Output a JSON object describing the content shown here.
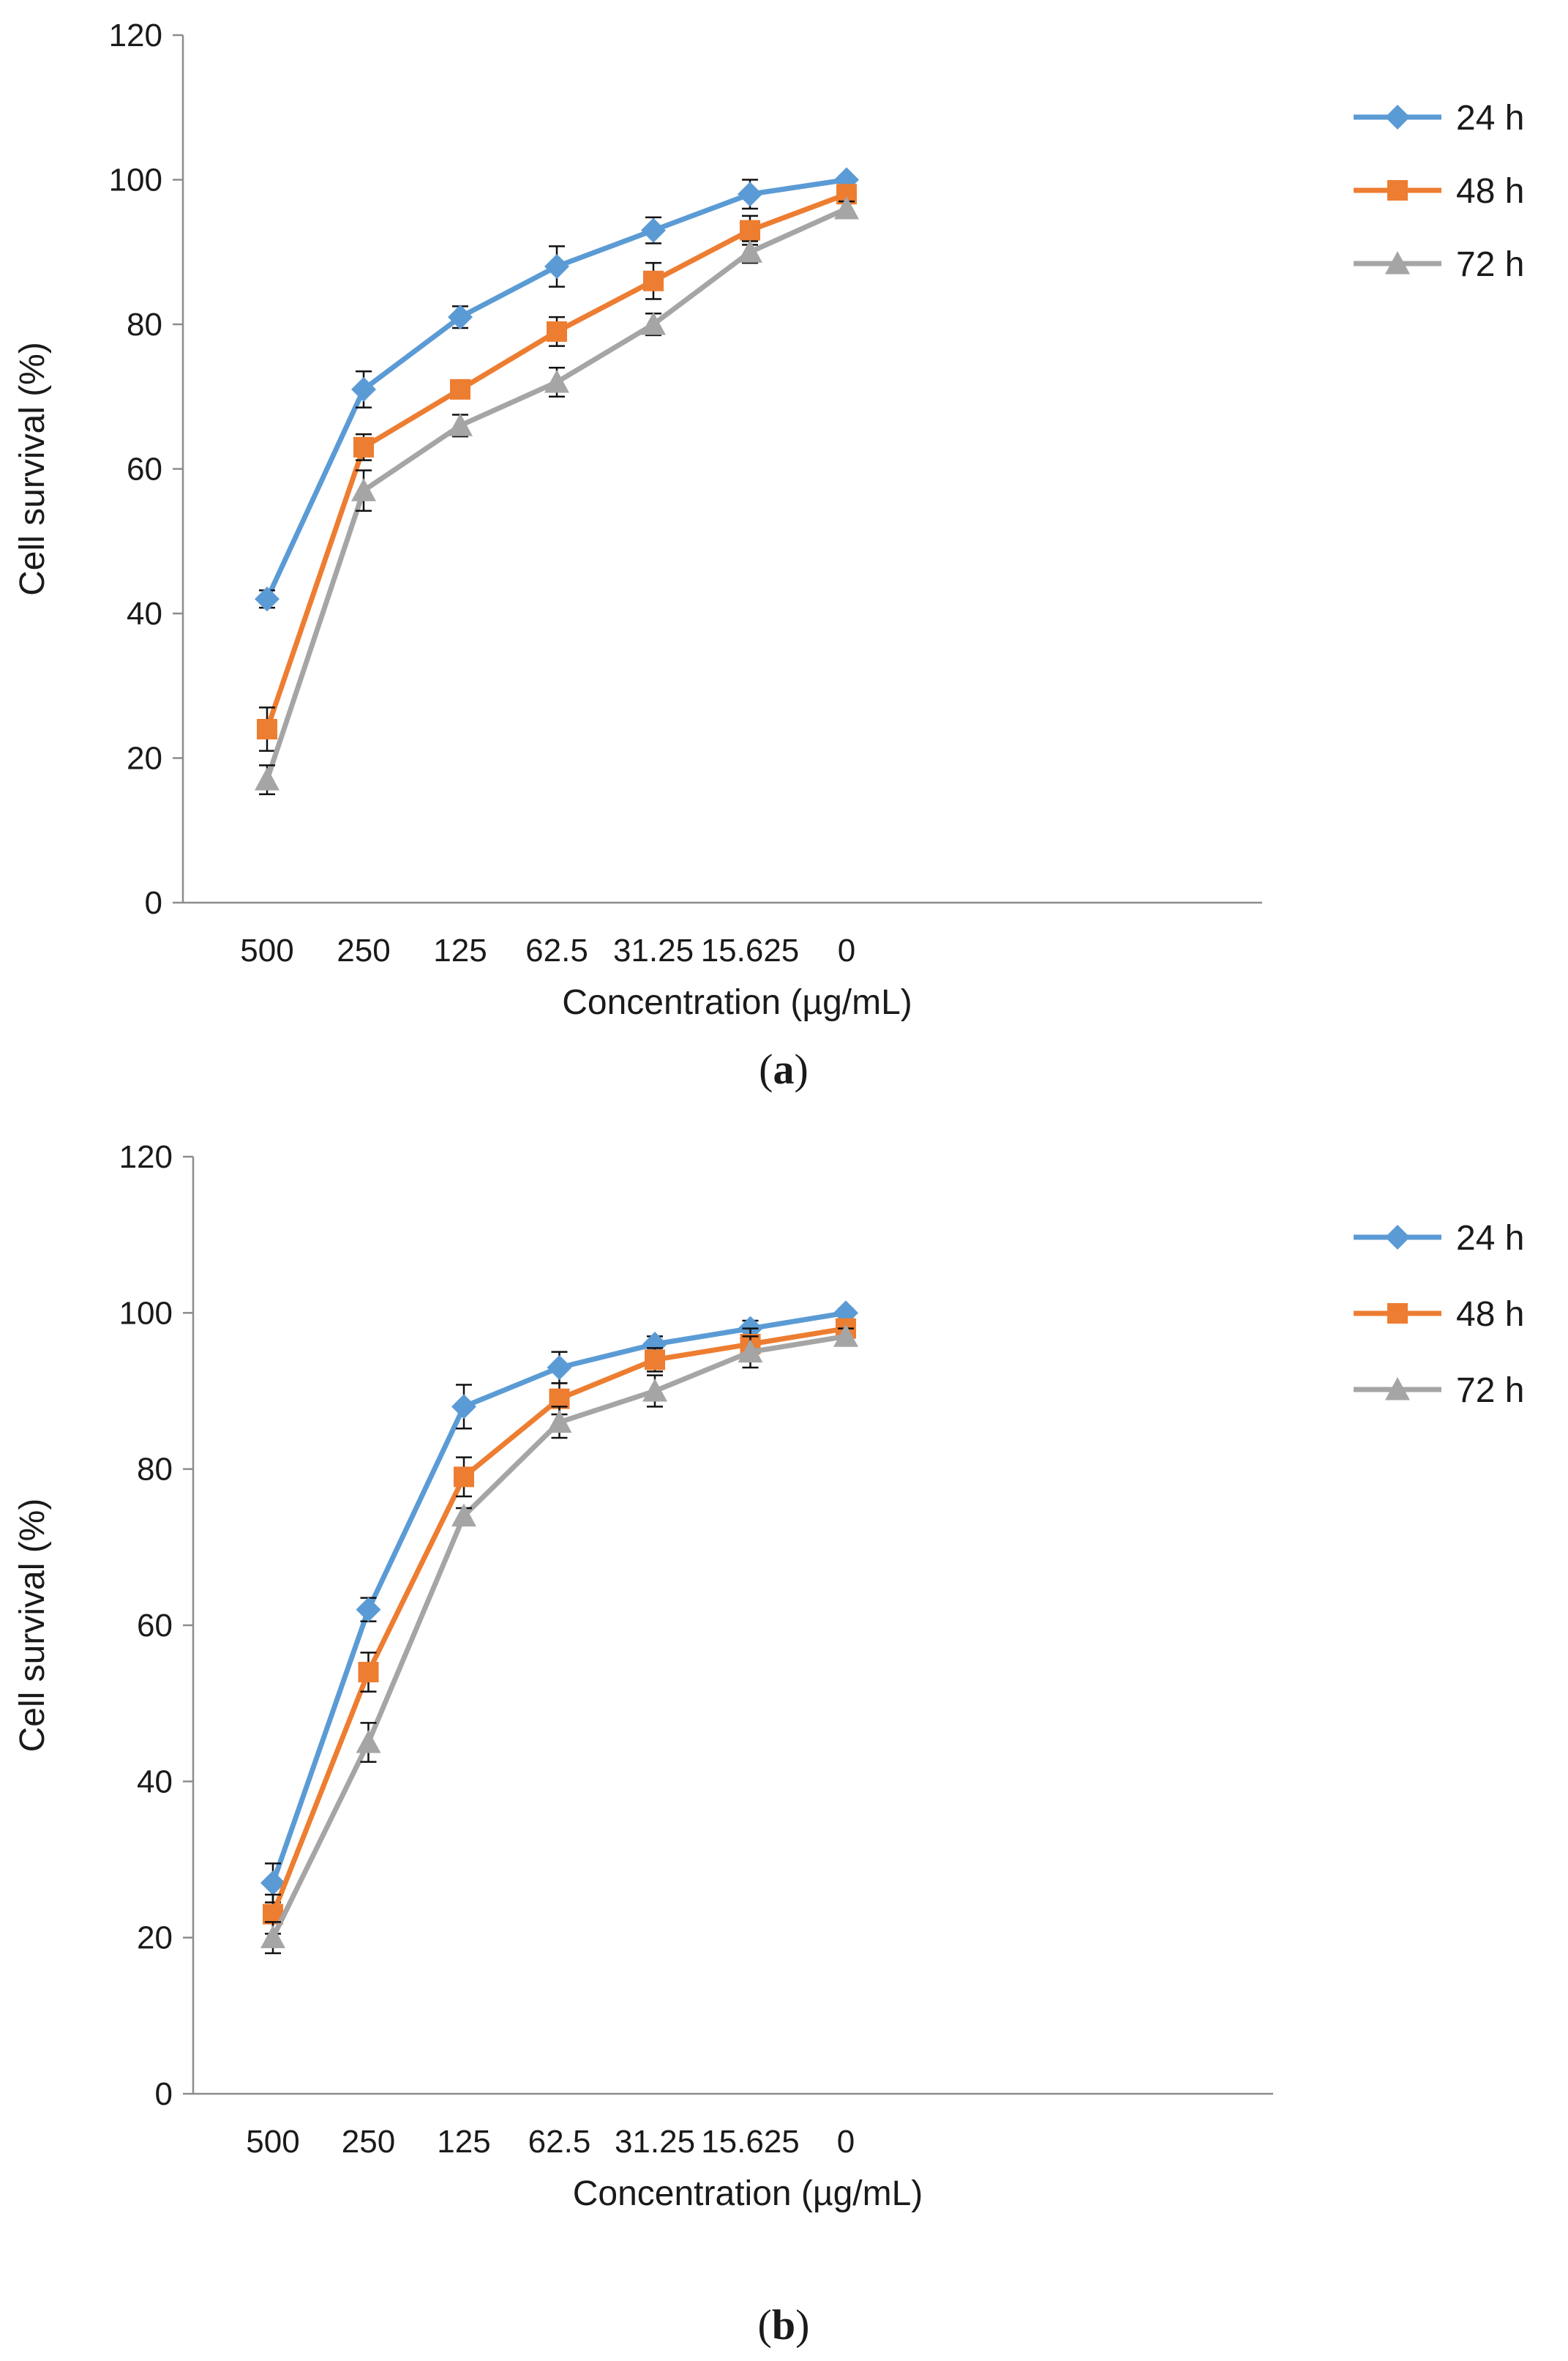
{
  "chart_data": [
    {
      "type": "line",
      "panel_label": "a",
      "xlabel": "Concentration (µg/mL)",
      "ylabel": "Cell survival (%)",
      "categories": [
        "500",
        "250",
        "125",
        "62.5",
        "31.25",
        "15.625",
        "0"
      ],
      "ylim": [
        0,
        120
      ],
      "yticks": [
        0,
        20,
        40,
        60,
        80,
        100,
        120
      ],
      "grid": false,
      "legend_position": "right",
      "error_bars": true,
      "series": [
        {
          "name": "24 h",
          "color": "#5b9bd5",
          "marker": "diamond",
          "values": [
            42,
            71,
            81,
            88,
            93,
            98,
            100
          ],
          "errors": [
            1.2,
            2.5,
            1.5,
            2.8,
            1.8,
            2.0,
            0.5
          ]
        },
        {
          "name": "48 h",
          "color": "#ed7d31",
          "marker": "square",
          "values": [
            24,
            63,
            71,
            79,
            86,
            93,
            98
          ],
          "errors": [
            3.0,
            1.8,
            1.0,
            2.0,
            2.5,
            2.0,
            1.0
          ]
        },
        {
          "name": "72 h",
          "color": "#a5a5a5",
          "marker": "triangle",
          "values": [
            17,
            57,
            66,
            72,
            80,
            90,
            96
          ],
          "errors": [
            2.0,
            2.8,
            1.5,
            2.0,
            1.5,
            1.5,
            1.0
          ]
        }
      ]
    },
    {
      "type": "line",
      "panel_label": "b",
      "xlabel": "Concentration (µg/mL)",
      "ylabel": "Cell survival (%)",
      "categories": [
        "500",
        "250",
        "125",
        "62.5",
        "31.25",
        "15.625",
        "0"
      ],
      "ylim": [
        0,
        120
      ],
      "yticks": [
        0,
        20,
        40,
        60,
        80,
        100,
        120
      ],
      "grid": false,
      "legend_position": "right",
      "error_bars": true,
      "series": [
        {
          "name": "24 h",
          "color": "#5b9bd5",
          "marker": "diamond",
          "values": [
            27,
            62,
            88,
            93,
            96,
            98,
            100
          ],
          "errors": [
            2.5,
            1.5,
            2.8,
            2.0,
            1.0,
            1.0,
            0.5
          ]
        },
        {
          "name": "48 h",
          "color": "#ed7d31",
          "marker": "square",
          "values": [
            23,
            54,
            79,
            89,
            94,
            96,
            98
          ],
          "errors": [
            2.5,
            2.5,
            2.5,
            2.0,
            1.5,
            2.0,
            1.0
          ]
        },
        {
          "name": "72 h",
          "color": "#a5a5a5",
          "marker": "triangle",
          "values": [
            20,
            45,
            74,
            86,
            90,
            95,
            97
          ],
          "errors": [
            2.0,
            2.5,
            1.0,
            2.0,
            2.0,
            2.0,
            1.0
          ]
        }
      ]
    }
  ]
}
